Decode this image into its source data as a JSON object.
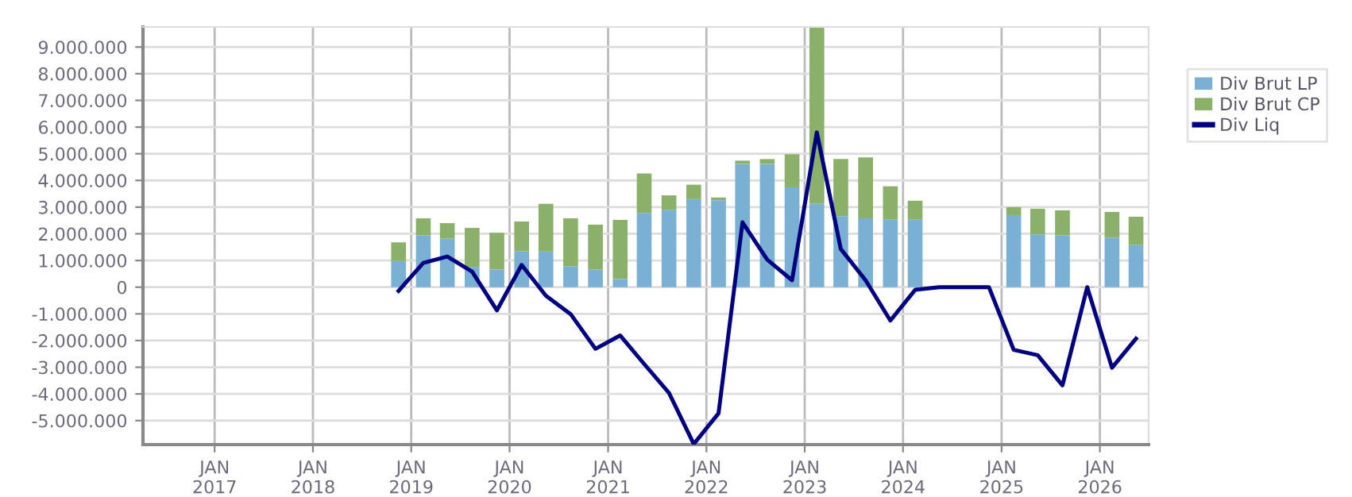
{
  "chart_data": {
    "type": "bar",
    "stacked": true,
    "x": [
      "2018-11-15",
      "2019-02-15",
      "2019-05-15",
      "2019-08-15",
      "2019-11-15",
      "2020-02-15",
      "2020-05-15",
      "2020-08-15",
      "2020-11-15",
      "2021-02-15",
      "2021-05-15",
      "2021-08-15",
      "2021-11-15",
      "2022-02-15",
      "2022-05-15",
      "2022-08-15",
      "2022-11-15",
      "2023-02-15",
      "2023-05-15",
      "2023-08-15",
      "2023-11-15",
      "2024-02-15",
      "2024-05-15",
      "2024-08-15",
      "2024-11-15",
      "2025-02-15",
      "2025-05-15",
      "2025-08-15",
      "2025-11-15",
      "2026-02-15",
      "2026-05-15"
    ],
    "series": [
      {
        "name": "Div Brut LP",
        "color": "#7ab0d4",
        "values": [
          980000,
          1940000,
          1820000,
          760000,
          660000,
          1340000,
          1340000,
          780000,
          660000,
          300000,
          2780000,
          2900000,
          3300000,
          3260000,
          4620000,
          4620000,
          3740000,
          3140000,
          2660000,
          2580000,
          2540000,
          2540000,
          null,
          null,
          0,
          2700000,
          1980000,
          1940000,
          0,
          1860000,
          1580000
        ]
      },
      {
        "name": "Div Brut CP",
        "color": "#8ab06a",
        "values": [
          700000,
          640000,
          580000,
          1460000,
          1380000,
          1120000,
          1780000,
          1800000,
          1680000,
          2220000,
          1480000,
          540000,
          540000,
          100000,
          120000,
          180000,
          1240000,
          6600000,
          2140000,
          2280000,
          1240000,
          700000,
          null,
          null,
          null,
          300000,
          960000,
          940000,
          20000,
          960000,
          1060000
        ]
      },
      {
        "name": "Div Liq",
        "type": "line",
        "color": "#000080",
        "line_style": "solid",
        "values": [
          -140000,
          910000,
          1150000,
          580000,
          -870000,
          830000,
          -320000,
          -1010000,
          -2310000,
          -1810000,
          -2880000,
          -3960000,
          -5880000,
          -4730000,
          2430000,
          1030000,
          260000,
          5800000,
          1430000,
          260000,
          -1250000,
          -100000,
          0,
          0,
          0,
          -2350000,
          -2550000,
          -3680000,
          0,
          -3020000,
          -1930000
        ]
      }
    ],
    "xlim": [
      "2016-04-10",
      "2026-07-01"
    ],
    "xticks": [
      {
        "value": "2017-01-01",
        "label": "JAN\n2017"
      },
      {
        "value": "2018-01-01",
        "label": "JAN\n2018"
      },
      {
        "value": "2019-01-01",
        "label": "JAN\n2019"
      },
      {
        "value": "2020-01-01",
        "label": "JAN\n2020"
      },
      {
        "value": "2021-01-01",
        "label": "JAN\n2021"
      },
      {
        "value": "2022-01-01",
        "label": "JAN\n2022"
      },
      {
        "value": "2023-01-01",
        "label": "JAN\n2023"
      },
      {
        "value": "2024-01-01",
        "label": "JAN\n2024"
      },
      {
        "value": "2025-01-01",
        "label": "JAN\n2025"
      },
      {
        "value": "2026-01-01",
        "label": "JAN\n2026"
      }
    ],
    "ylim": [
      -5900000,
      9750000
    ],
    "yticks": [
      {
        "value": -5000000,
        "label": "-5.000.000"
      },
      {
        "value": -4000000,
        "label": "-4.000.000"
      },
      {
        "value": -3000000,
        "label": "-3.000.000"
      },
      {
        "value": -2000000,
        "label": "-2.000.000"
      },
      {
        "value": -1000000,
        "label": "-1.000.000"
      },
      0,
      {
        "value": 1000000,
        "label": "1.000.000"
      },
      {
        "value": 2000000,
        "label": "2.000.000"
      },
      {
        "value": 3000000,
        "label": "3.000.000"
      },
      {
        "value": 4000000,
        "label": "4.000.000"
      },
      {
        "value": 5000000,
        "label": "5.000.000"
      },
      {
        "value": 6000000,
        "label": "6.000.000"
      },
      {
        "value": 7000000,
        "label": "7.000.000"
      },
      {
        "value": 8000000,
        "label": "8.000.000"
      },
      {
        "value": 9000000,
        "label": "9.000.000"
      }
    ],
    "grid": true,
    "legend": "top right",
    "marker": "none"
  }
}
